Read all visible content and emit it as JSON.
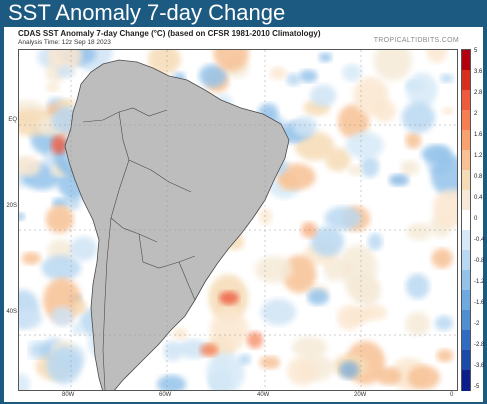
{
  "page_title": "SST Anomaly 7-day Change",
  "map": {
    "title": "CDAS SST Anomaly 7-day Change (°C) (based on CFSR 1981-2010 Climatology)",
    "analysis_time": "Analysis Time: 12z Sep 18 2023",
    "credit": "TROPICALTIDBITS.COM",
    "lat_labels": [
      "EQ",
      "20S",
      "40S"
    ],
    "lon_labels": [
      "80W",
      "60W",
      "40W",
      "20W",
      "0"
    ]
  },
  "colorbar": {
    "labels": [
      "5",
      "3.6",
      "2.8",
      "2",
      "1.6",
      "1.2",
      "0.8",
      "0.4",
      "0",
      "-0.4",
      "-0.8",
      "-1.2",
      "-1.6",
      "-2",
      "-2.8",
      "-3.6",
      "-5"
    ],
    "colors": [
      "#b2000e",
      "#d7301f",
      "#ee5a3e",
      "#f67e52",
      "#f8a36f",
      "#f7c194",
      "#f5dbb6",
      "#f5ead8",
      "#ffffff",
      "#d6e9f7",
      "#b9d8f1",
      "#94c3ea",
      "#6fa9dd",
      "#4f8ed0",
      "#316cc0",
      "#1c4aa8",
      "#0a1f8c"
    ]
  },
  "colors": {
    "land": "#bdbdbd",
    "land_border": "#4a4a4a",
    "header_background": "#1c5a82"
  }
}
